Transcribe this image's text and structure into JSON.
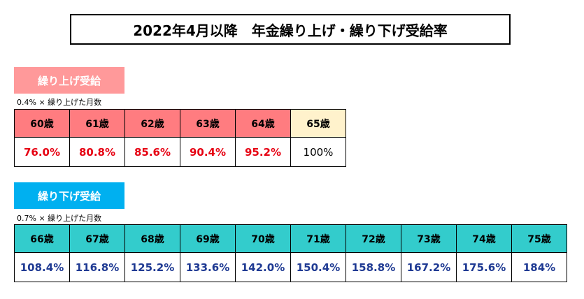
{
  "title": "2022年4月以降　年金繰り上げ・繰り下げ受給率",
  "early": {
    "label": "繰り上げ受給",
    "formula": "0.4% × 繰り上げた月数",
    "ages": [
      "60歳",
      "61歳",
      "62歳",
      "63歳",
      "64歳",
      "65歳"
    ],
    "rates": [
      "76.0%",
      "80.8%",
      "85.6%",
      "90.4%",
      "95.2%",
      "100%"
    ],
    "colors": {
      "label_bg": "#ff999a",
      "header_bg": "#ff7c80",
      "base_bg": "#fff2cc",
      "value": "#e60012"
    }
  },
  "late": {
    "label": "繰り下げ受給",
    "formula": "0.7% × 繰り上げた月数",
    "ages": [
      "66歳",
      "67歳",
      "68歳",
      "69歳",
      "70歳",
      "71歳",
      "72歳",
      "73歳",
      "74歳",
      "75歳"
    ],
    "rates": [
      "108.4%",
      "116.8%",
      "125.2%",
      "133.6%",
      "142.0%",
      "150.4%",
      "158.8%",
      "167.2%",
      "175.6%",
      "184%"
    ],
    "colors": {
      "label_bg": "#00b0f0",
      "header_bg": "#33cccc",
      "value": "#1f3a93"
    }
  }
}
